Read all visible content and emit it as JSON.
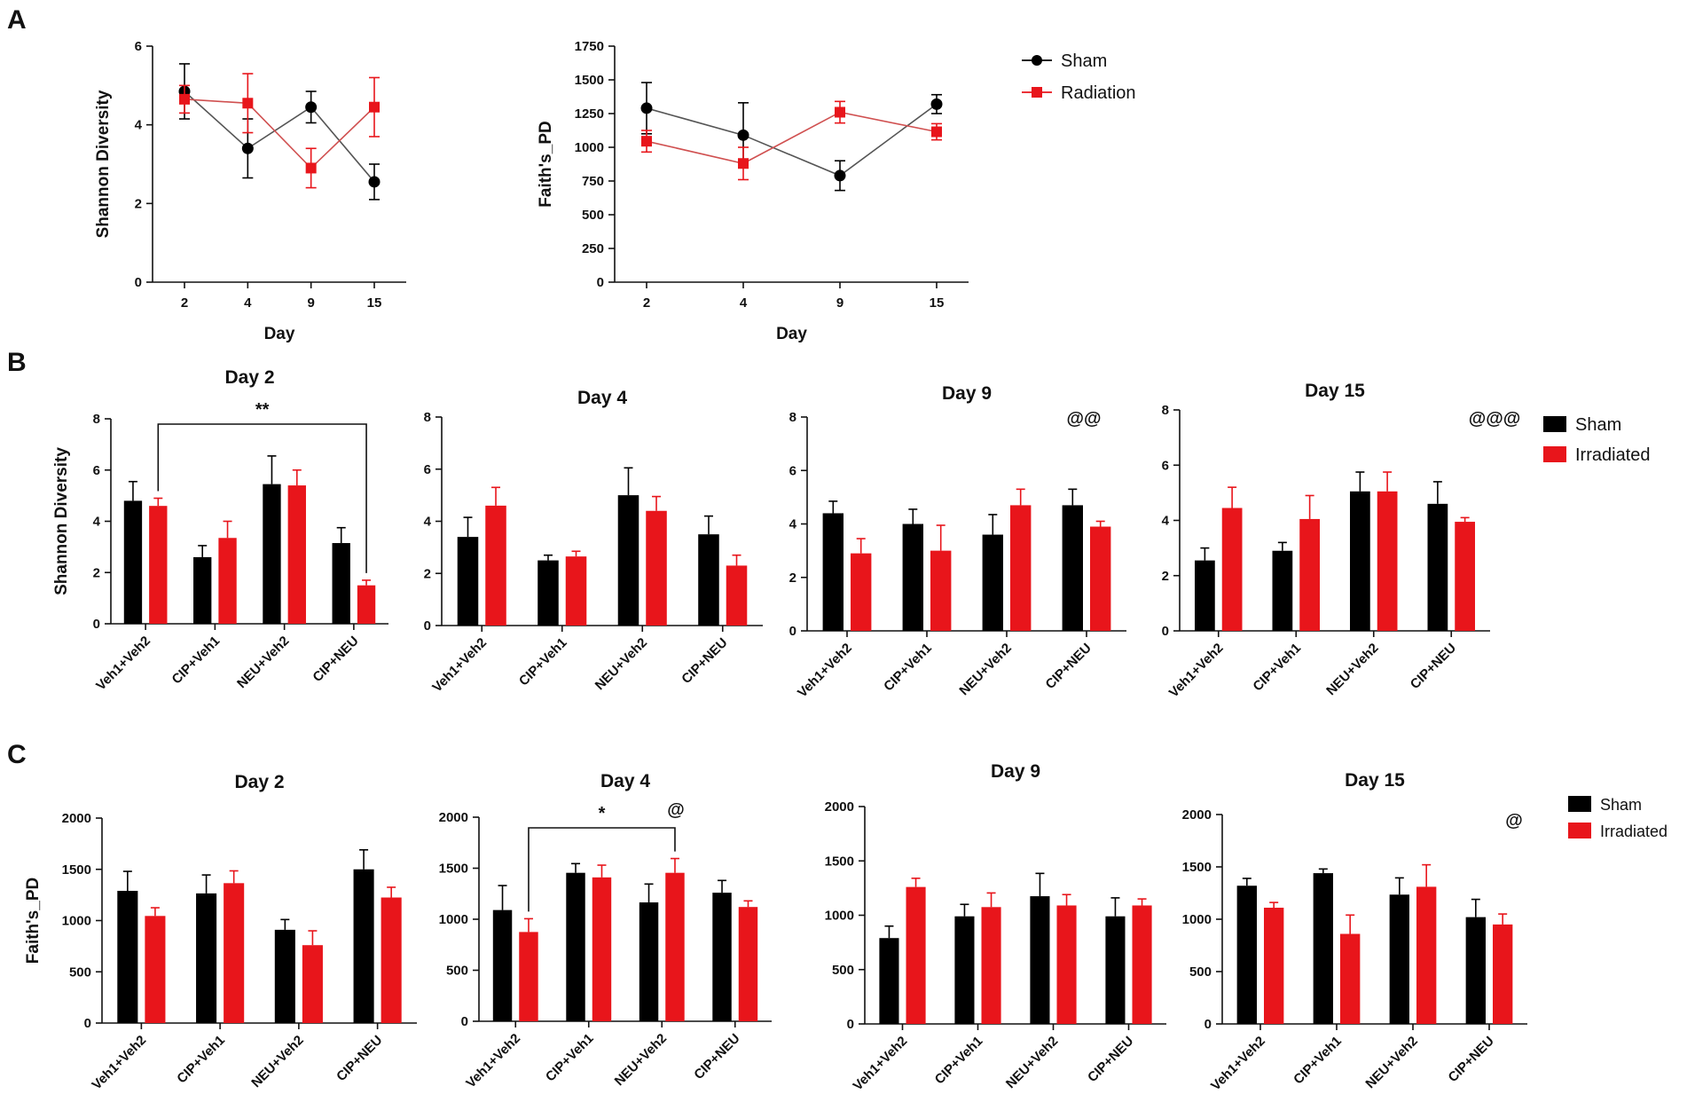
{
  "panel_labels": [
    "A",
    "B",
    "C"
  ],
  "colors": {
    "sham": "#000000",
    "radiation": "#e8151b",
    "line_sham": "#555555",
    "line_radiation": "#d05050"
  },
  "chart_data": [
    {
      "id": "A1",
      "type": "line",
      "title": "",
      "xlabel": "Day",
      "ylabel": "Shannon Diversity",
      "categories": [
        "2",
        "4",
        "9",
        "15"
      ],
      "ylim": [
        0,
        6
      ],
      "yticks": [
        0,
        2,
        4,
        6
      ],
      "series": [
        {
          "name": "Sham",
          "values": [
            4.85,
            3.4,
            4.45,
            2.55
          ],
          "errors": [
            0.7,
            0.75,
            0.4,
            0.45
          ]
        },
        {
          "name": "Radiation",
          "values": [
            4.65,
            4.55,
            2.9,
            4.45
          ],
          "errors": [
            0.35,
            0.75,
            0.5,
            0.75
          ]
        }
      ]
    },
    {
      "id": "A2",
      "type": "line",
      "title": "",
      "xlabel": "Day",
      "ylabel": "Faith's_PD",
      "categories": [
        "2",
        "4",
        "9",
        "15"
      ],
      "ylim": [
        0,
        1750
      ],
      "yticks": [
        0,
        250,
        500,
        750,
        1000,
        1250,
        1500,
        1750
      ],
      "series": [
        {
          "name": "Sham",
          "values": [
            1290,
            1090,
            790,
            1320
          ],
          "errors": [
            190,
            240,
            110,
            70
          ]
        },
        {
          "name": "Radiation",
          "values": [
            1045,
            880,
            1260,
            1115
          ],
          "errors": [
            80,
            120,
            80,
            60
          ]
        }
      ],
      "legend": [
        "Sham",
        "Radiation"
      ]
    },
    {
      "id": "B1",
      "type": "bar",
      "title": "Day 2",
      "ylabel": "Shannon Diversity",
      "categories": [
        "Veh1+Veh2",
        "CIP+Veh1",
        "NEU+Veh2",
        "CIP+NEU"
      ],
      "ylim": [
        0,
        8
      ],
      "yticks": [
        0,
        2,
        4,
        6,
        8
      ],
      "series": [
        {
          "name": "Sham",
          "values": [
            4.8,
            2.6,
            5.45,
            3.15
          ],
          "errors": [
            0.75,
            0.45,
            1.1,
            0.6
          ]
        },
        {
          "name": "Irradiated",
          "values": [
            4.6,
            3.35,
            5.4,
            1.5
          ],
          "errors": [
            0.3,
            0.65,
            0.6,
            0.2
          ]
        }
      ],
      "bracket": {
        "from": 0,
        "to": 3,
        "label": "**"
      }
    },
    {
      "id": "B2",
      "type": "bar",
      "title": "Day 4",
      "ylabel": "",
      "categories": [
        "Veh1+Veh2",
        "CIP+Veh1",
        "NEU+Veh2",
        "CIP+NEU"
      ],
      "ylim": [
        0,
        8
      ],
      "yticks": [
        0,
        2,
        4,
        6,
        8
      ],
      "series": [
        {
          "name": "Sham",
          "values": [
            3.4,
            2.5,
            5.0,
            3.5
          ],
          "errors": [
            0.75,
            0.2,
            1.05,
            0.7
          ]
        },
        {
          "name": "Irradiated",
          "values": [
            4.6,
            2.65,
            4.4,
            2.3
          ],
          "errors": [
            0.7,
            0.2,
            0.55,
            0.4
          ]
        }
      ]
    },
    {
      "id": "B3",
      "type": "bar",
      "title": "Day 9",
      "ylabel": "",
      "categories": [
        "Veh1+Veh2",
        "CIP+Veh1",
        "NEU+Veh2",
        "CIP+NEU"
      ],
      "ylim": [
        0,
        8
      ],
      "yticks": [
        0,
        2,
        4,
        6,
        8
      ],
      "series": [
        {
          "name": "Sham",
          "values": [
            4.4,
            4.0,
            3.6,
            4.7
          ],
          "errors": [
            0.45,
            0.55,
            0.75,
            0.6
          ]
        },
        {
          "name": "Irradiated",
          "values": [
            2.9,
            3.0,
            4.7,
            3.9
          ],
          "errors": [
            0.55,
            0.95,
            0.6,
            0.2
          ]
        }
      ],
      "annotation": "@@"
    },
    {
      "id": "B4",
      "type": "bar",
      "title": "Day 15",
      "ylabel": "",
      "categories": [
        "Veh1+Veh2",
        "CIP+Veh1",
        "NEU+Veh2",
        "CIP+NEU"
      ],
      "ylim": [
        0,
        8
      ],
      "yticks": [
        0,
        2,
        4,
        6,
        8
      ],
      "series": [
        {
          "name": "Sham",
          "values": [
            2.55,
            2.9,
            5.05,
            4.6
          ],
          "errors": [
            0.45,
            0.3,
            0.7,
            0.8
          ]
        },
        {
          "name": "Irradiated",
          "values": [
            4.45,
            4.05,
            5.05,
            3.95
          ],
          "errors": [
            0.75,
            0.85,
            0.7,
            0.15
          ]
        }
      ],
      "annotation": "@@@",
      "legend": [
        "Sham",
        "Irradiated"
      ]
    },
    {
      "id": "C1",
      "type": "bar",
      "title": "Day 2",
      "ylabel": "Faith's_PD",
      "categories": [
        "Veh1+Veh2",
        "CIP+Veh1",
        "NEU+Veh2",
        "CIP+NEU"
      ],
      "ylim": [
        0,
        2000
      ],
      "yticks": [
        0,
        500,
        1000,
        1500,
        2000
      ],
      "series": [
        {
          "name": "Sham",
          "values": [
            1290,
            1265,
            910,
            1500
          ],
          "errors": [
            190,
            180,
            100,
            190
          ]
        },
        {
          "name": "Irradiated",
          "values": [
            1045,
            1365,
            760,
            1225
          ],
          "errors": [
            80,
            120,
            140,
            100
          ]
        }
      ]
    },
    {
      "id": "C2",
      "type": "bar",
      "title": "Day 4",
      "ylabel": "",
      "categories": [
        "Veh1+Veh2",
        "CIP+Veh1",
        "NEU+Veh2",
        "CIP+NEU"
      ],
      "ylim": [
        0,
        2000
      ],
      "yticks": [
        0,
        500,
        1000,
        1500,
        2000
      ],
      "series": [
        {
          "name": "Sham",
          "values": [
            1090,
            1455,
            1165,
            1260
          ],
          "errors": [
            240,
            90,
            180,
            120
          ]
        },
        {
          "name": "Irradiated",
          "values": [
            875,
            1410,
            1455,
            1120
          ],
          "errors": [
            130,
            120,
            140,
            60
          ]
        }
      ],
      "bracket": {
        "from": 0,
        "to": 2,
        "label": "*"
      },
      "annotation": "@"
    },
    {
      "id": "C3",
      "type": "bar",
      "title": "Day 9",
      "ylabel": "",
      "categories": [
        "Veh1+Veh2",
        "CIP+Veh1",
        "NEU+Veh2",
        "CIP+NEU"
      ],
      "ylim": [
        0,
        2000
      ],
      "yticks": [
        0,
        500,
        1000,
        1500,
        2000
      ],
      "series": [
        {
          "name": "Sham",
          "values": [
            790,
            990,
            1175,
            990
          ],
          "errors": [
            110,
            110,
            210,
            170
          ]
        },
        {
          "name": "Irradiated",
          "values": [
            1260,
            1075,
            1090,
            1090
          ],
          "errors": [
            80,
            130,
            100,
            60
          ]
        }
      ]
    },
    {
      "id": "C4",
      "type": "bar",
      "title": "Day 15",
      "ylabel": "",
      "categories": [
        "Veh1+Veh2",
        "CIP+Veh1",
        "NEU+Veh2",
        "CIP+NEU"
      ],
      "ylim": [
        0,
        2000
      ],
      "yticks": [
        0,
        500,
        1000,
        1500,
        2000
      ],
      "series": [
        {
          "name": "Sham",
          "values": [
            1320,
            1440,
            1235,
            1020
          ],
          "errors": [
            70,
            40,
            160,
            170
          ]
        },
        {
          "name": "Irradiated",
          "values": [
            1110,
            860,
            1310,
            950
          ],
          "errors": [
            50,
            180,
            210,
            100
          ]
        }
      ],
      "annotation": "@",
      "legend": [
        "Sham",
        "Irradiated"
      ]
    }
  ]
}
